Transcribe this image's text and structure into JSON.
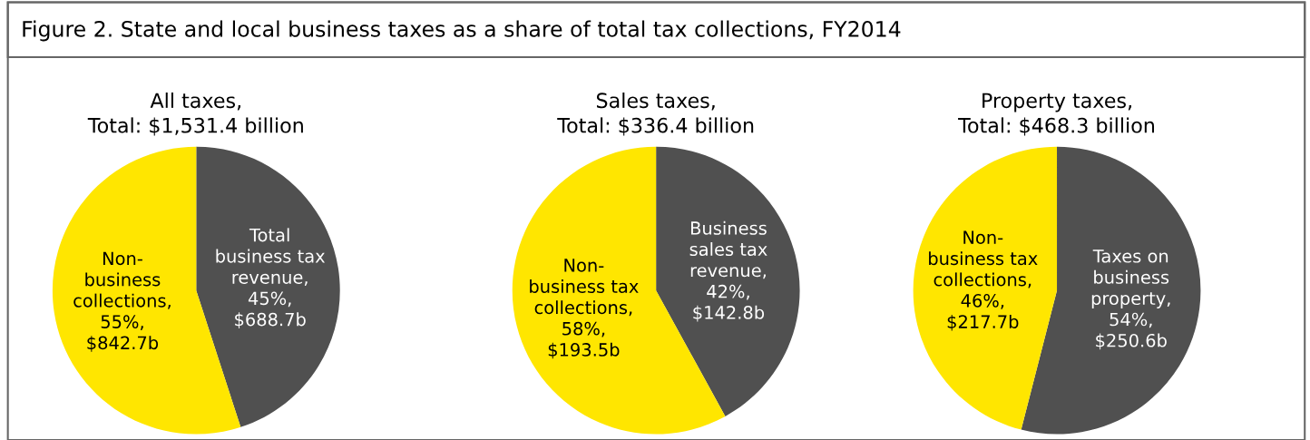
{
  "chart_data": [
    {
      "type": "pie",
      "title": "All taxes,\nTotal: $1,531.4 billion",
      "annotations": [
        "Figure 2. State and local business taxes as a share of total tax collections, FY2014"
      ],
      "categories": [
        "Total\nbusiness tax\nrevenue",
        "Non-\nbusiness\ncollections"
      ],
      "values": [
        45,
        55
      ],
      "value_labels": [
        ",\n45%,\n$688.7b",
        ",\n55%,\n$842.7b"
      ],
      "colors": [
        "#505050",
        "#ffe600"
      ]
    },
    {
      "type": "pie",
      "title": "Sales taxes,\nTotal: $336.4 billion",
      "categories": [
        "Business\nsales tax\nrevenue",
        "Non-\nbusiness tax\ncollections"
      ],
      "values": [
        42,
        58
      ],
      "value_labels": [
        ",\n42%,\n$142.8b",
        ",\n58%,\n$193.5b"
      ],
      "colors": [
        "#505050",
        "#ffe600"
      ]
    },
    {
      "type": "pie",
      "title": "Property taxes,\nTotal: $468.3 billion",
      "categories": [
        "Taxes on\nbusiness\nproperty",
        "Non-\nbusiness tax\ncollections"
      ],
      "values": [
        54,
        46
      ],
      "value_labels": [
        ",\n54%,\n$250.6b",
        ",\n46%,\n$217.7b"
      ],
      "colors": [
        "#505050",
        "#ffe600"
      ]
    }
  ]
}
